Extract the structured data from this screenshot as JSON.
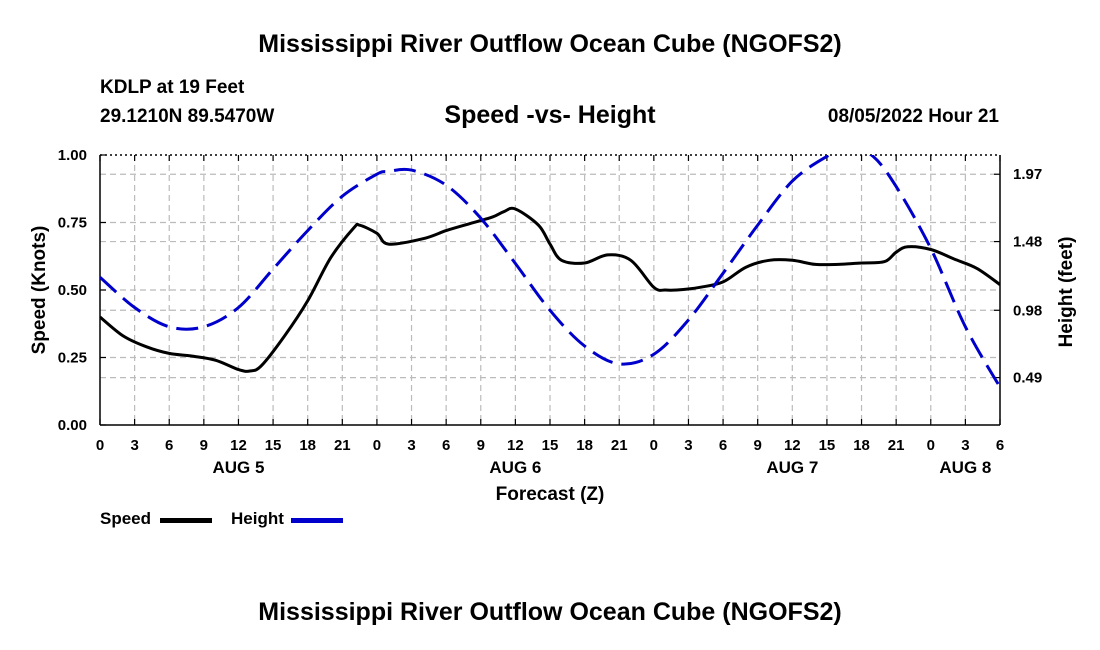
{
  "header": {
    "main_title": "Mississippi River Outflow Ocean Cube (NGOFS2)",
    "station": "KDLP at 19 Feet",
    "coords": "29.1210N  89.5470W",
    "subtitle": "Speed -vs- Height",
    "datetime": "08/05/2022 Hour 21",
    "bottom_title": "Mississippi River Outflow Ocean Cube (NGOFS2)"
  },
  "legend": {
    "speed": "Speed",
    "height": "Height"
  },
  "colors": {
    "speed": "#000000",
    "height": "#0000cc",
    "grid": "#bbbbbb"
  },
  "chart_data": {
    "type": "line",
    "title": "Speed -vs- Height",
    "xlabel": "Forecast (Z)",
    "ylabel": "Speed (Knots)",
    "y2label": "Height (feet)",
    "x_unit": "forecast hours from AUG 5 00Z",
    "xlim": [
      0,
      78
    ],
    "ylim": [
      0,
      1
    ],
    "y2lim": [
      0.145,
      2.11
    ],
    "x_ticks": [
      0,
      3,
      6,
      9,
      12,
      15,
      18,
      21,
      24,
      27,
      30,
      33,
      36,
      39,
      42,
      45,
      48,
      51,
      54,
      57,
      60,
      63,
      66,
      69,
      72,
      75,
      78
    ],
    "x_tick_labels": [
      "0",
      "3",
      "6",
      "9",
      "12",
      "15",
      "18",
      "21",
      "0",
      "3",
      "6",
      "9",
      "12",
      "15",
      "18",
      "21",
      "0",
      "3",
      "6",
      "9",
      "12",
      "15",
      "18",
      "21",
      "0",
      "3",
      "6"
    ],
    "day_labels": [
      {
        "x": 12,
        "label": "AUG 5"
      },
      {
        "x": 36,
        "label": "AUG 6"
      },
      {
        "x": 60,
        "label": "AUG 7"
      },
      {
        "x": 75,
        "label": "AUG 8"
      }
    ],
    "y_ticks": [
      0,
      0.25,
      0.5,
      0.75,
      1
    ],
    "y_tick_labels": [
      "0.00",
      "0.25",
      "0.50",
      "0.75",
      "1.00"
    ],
    "y2_ticks": [
      0.49,
      0.98,
      1.48,
      1.97
    ],
    "y2_tick_labels": [
      "0.49",
      "0.98",
      "1.48",
      "1.97"
    ],
    "series": [
      {
        "name": "Speed",
        "axis": "left",
        "style": "solid",
        "x": [
          0,
          2,
          4,
          6,
          8,
          10,
          12,
          13,
          14,
          16,
          18,
          20,
          22,
          22.5,
          24,
          25,
          28,
          30,
          32,
          34,
          35,
          36,
          38,
          39,
          40,
          42,
          44,
          46,
          48,
          49,
          50,
          52,
          54,
          56,
          58,
          60,
          62,
          64,
          66,
          68,
          69,
          70,
          72,
          74,
          76,
          78
        ],
        "values": [
          0.4,
          0.33,
          0.29,
          0.265,
          0.255,
          0.24,
          0.205,
          0.2,
          0.22,
          0.33,
          0.46,
          0.62,
          0.73,
          0.74,
          0.71,
          0.67,
          0.69,
          0.72,
          0.745,
          0.77,
          0.79,
          0.8,
          0.74,
          0.67,
          0.61,
          0.6,
          0.63,
          0.61,
          0.51,
          0.5,
          0.5,
          0.51,
          0.53,
          0.585,
          0.61,
          0.61,
          0.595,
          0.595,
          0.6,
          0.605,
          0.64,
          0.66,
          0.65,
          0.615,
          0.58,
          0.52
        ]
      },
      {
        "name": "Height",
        "axis": "right",
        "style": "dashed",
        "x": [
          0,
          3,
          6,
          9,
          12,
          15,
          18,
          21,
          24,
          25,
          27,
          30,
          33,
          36,
          39,
          42,
          45,
          48,
          51,
          54,
          57,
          60,
          63,
          65,
          67,
          69,
          72,
          75,
          78
        ],
        "values": [
          1.22,
          1.0,
          0.86,
          0.86,
          1.0,
          1.28,
          1.56,
          1.81,
          1.97,
          1.99,
          2.0,
          1.89,
          1.65,
          1.32,
          0.98,
          0.72,
          0.59,
          0.66,
          0.91,
          1.25,
          1.6,
          1.92,
          2.1,
          2.17,
          2.1,
          1.88,
          1.43,
          0.86,
          0.42
        ]
      }
    ]
  }
}
